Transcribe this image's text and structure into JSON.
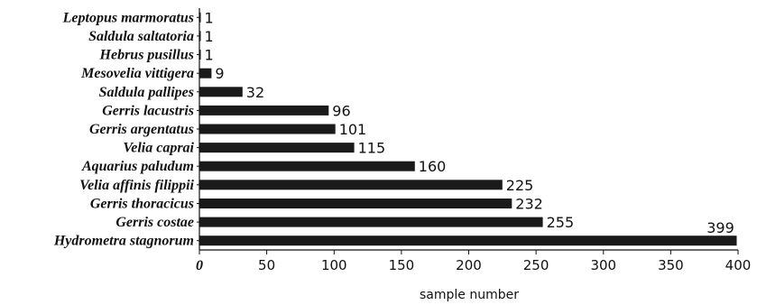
{
  "chart_data": {
    "type": "bar",
    "orientation": "horizontal",
    "categories": [
      "Leptopus marmoratus",
      "Saldula saltatoria",
      "Hebrus pusillus",
      "Mesovelia vittigera",
      "Saldula pallipes",
      "Gerris lacustris",
      "Gerris argentatus",
      "Velia caprai",
      "Aquarius paludum",
      "Velia affinis filippii",
      "Gerris thoracicus",
      "Gerris costae",
      "Hydrometra stagnorum"
    ],
    "values": [
      1,
      1,
      1,
      9,
      32,
      96,
      101,
      115,
      160,
      225,
      232,
      255,
      399
    ],
    "xlabel": "sample number",
    "ylabel": "",
    "xlim": [
      0,
      400
    ],
    "xticks": [
      "0",
      "50",
      "100",
      "150",
      "200",
      "250",
      "300",
      "350",
      "400"
    ],
    "grid": false,
    "bar_color": "#1a1a1a"
  }
}
